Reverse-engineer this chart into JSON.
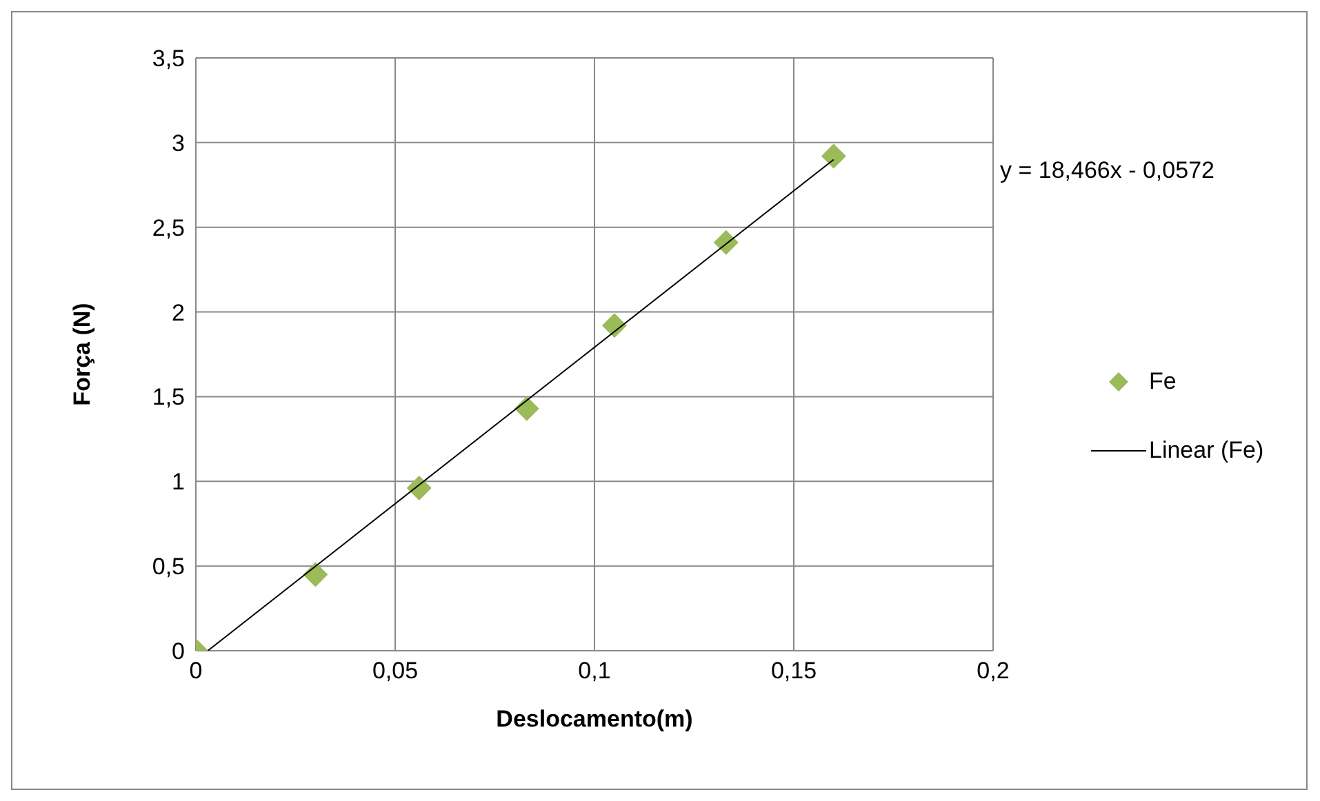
{
  "chart_data": {
    "type": "scatter",
    "xlabel": "Deslocamento(m)",
    "ylabel": "Força (N)",
    "xlim": [
      0,
      0.2
    ],
    "xticks": [
      0,
      {
        "value": 0.05,
        "label": "0,05"
      },
      {
        "value": 0.1,
        "label": "0,1"
      },
      {
        "value": 0.15,
        "label": "0,15"
      },
      {
        "value": 0.2,
        "label": "0,2"
      }
    ],
    "ylim": [
      0,
      3.5
    ],
    "yticks": [
      0,
      {
        "value": 0.5,
        "label": "0,5"
      },
      1,
      {
        "value": 1.5,
        "label": "1,5"
      },
      2,
      {
        "value": 2.5,
        "label": "2,5"
      },
      3,
      {
        "value": 3.5,
        "label": "3,5"
      }
    ],
    "grid": true,
    "legend": "right",
    "annotations": [
      "y = 18,466x - 0,0572"
    ],
    "series": [
      {
        "name": "Fe",
        "marker": "diamond",
        "color": "#9bbb59",
        "x": [
          0,
          0.03,
          0.056,
          0.083,
          0.105,
          0.133,
          0.16
        ],
        "values": [
          0,
          0.45,
          0.96,
          1.43,
          1.92,
          2.41,
          2.92
        ]
      },
      {
        "name": "Linear (Fe)",
        "type": "line",
        "marker": "none",
        "color": "#000000",
        "x": [
          0.003,
          0.16
        ],
        "values": [
          0,
          2.9
        ]
      }
    ]
  }
}
